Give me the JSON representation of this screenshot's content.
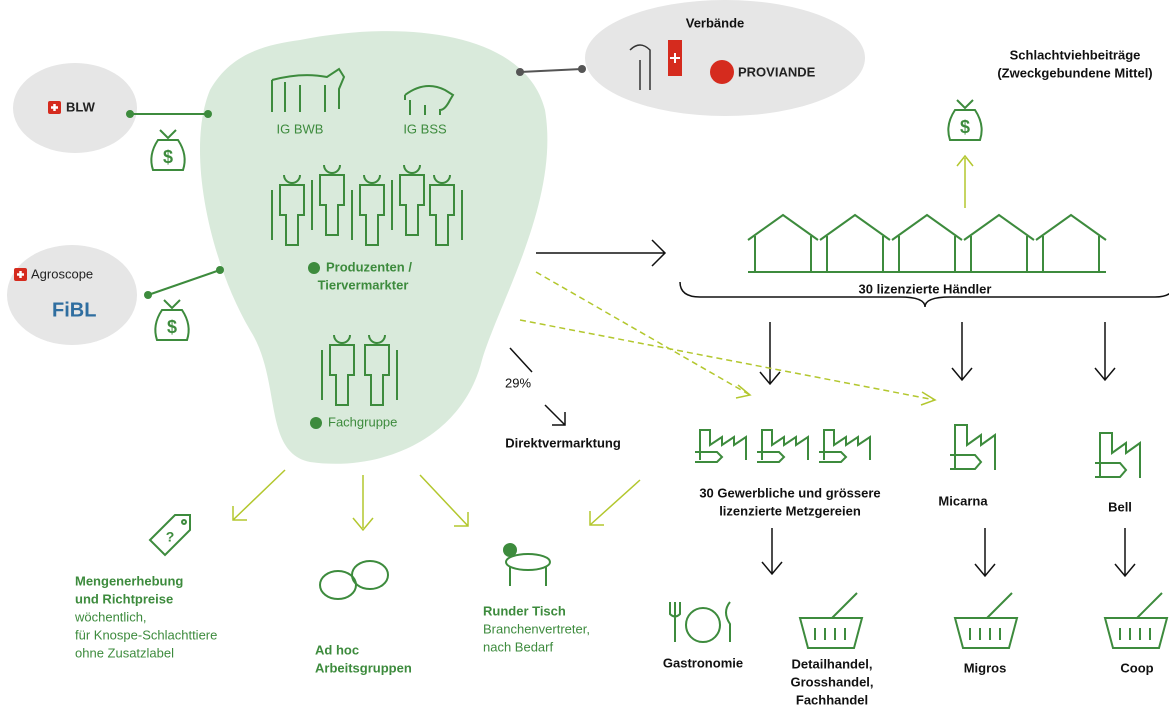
{
  "nodes": {
    "blw": {
      "label": "BLW"
    },
    "agroscope": {
      "label": "Agroscope"
    },
    "fibl": {
      "label": "FiBL"
    },
    "verbaende": {
      "label": "Verbände",
      "logo": "PROVIANDE"
    },
    "ig_bwb": {
      "label": "IG BWB"
    },
    "ig_bss": {
      "label": "IG BSS"
    },
    "produzenten": {
      "lines": [
        "Produzenten /",
        "Tiervermarkter"
      ]
    },
    "fachgruppe": {
      "label": "Fachgruppe"
    },
    "schlachtvieh": {
      "lines": [
        "Schlachtviehbeiträge",
        "(Zweckgebundene Mittel)"
      ]
    },
    "haendler": {
      "label": "30 lizenzierte Händler"
    },
    "direkt": {
      "share": "29%",
      "label": "Direktvermarktung"
    },
    "metzgereien": {
      "lines": [
        "30 Gewerbliche und grössere",
        "lizenzierte Metzgereien"
      ]
    },
    "micarna": {
      "label": "Micarna"
    },
    "bell": {
      "label": "Bell"
    },
    "gastronomie": {
      "label": "Gastronomie"
    },
    "handel": {
      "lines": [
        "Detailhandel,",
        "Grosshandel,",
        "Fachhandel"
      ]
    },
    "migros": {
      "label": "Migros"
    },
    "coop": {
      "label": "Coop"
    },
    "mengen": {
      "lines": [
        "Mengenerhebung",
        "und Richtpreise"
      ],
      "sub": [
        "wöchentlich,",
        "für Knospe-Schlachttiere",
        "ohne Zusatzlabel"
      ]
    },
    "adhoc": {
      "lines": [
        "Ad hoc",
        "Arbeitsgruppen"
      ]
    },
    "runder": {
      "lines": [
        "Runder Tisch"
      ],
      "sub": [
        "Branchenvertreter,",
        "nach Bedarf"
      ]
    }
  }
}
